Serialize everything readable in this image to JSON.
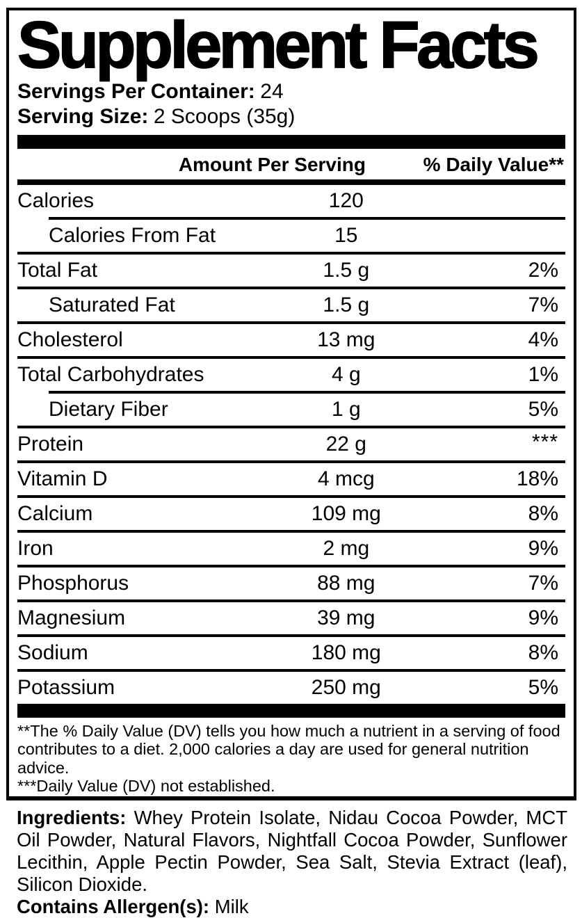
{
  "title": "Supplement Facts",
  "serving_info": {
    "servings_per_container_label": "Servings Per Container:",
    "servings_per_container_value": "24",
    "serving_size_label": "Serving Size:",
    "serving_size_value": "2 Scoops (35g)"
  },
  "table": {
    "header": {
      "amount": "Amount Per Serving",
      "daily_value": "% Daily Value**"
    },
    "rows": [
      {
        "name": "Calories",
        "amount": "120",
        "dv": ""
      },
      {
        "name": "Calories From Fat",
        "amount": "15",
        "dv": ""
      },
      {
        "name": "Total Fat",
        "amount": "1.5 g",
        "dv": "2%"
      },
      {
        "name": "Saturated Fat",
        "amount": "1.5 g",
        "dv": "7%"
      },
      {
        "name": "Cholesterol",
        "amount": "13 mg",
        "dv": "4%"
      },
      {
        "name": "Total Carbohydrates",
        "amount": "4 g",
        "dv": "1%"
      },
      {
        "name": "Dietary Fiber",
        "amount": "1 g",
        "dv": "5%"
      },
      {
        "name": "Protein",
        "amount": "22 g",
        "dv": "***"
      },
      {
        "name": "Vitamin D",
        "amount": "4 mcg",
        "dv": "18%"
      },
      {
        "name": "Calcium",
        "amount": "109 mg",
        "dv": "8%"
      },
      {
        "name": "Iron",
        "amount": "2 mg",
        "dv": "9%"
      },
      {
        "name": "Phosphorus",
        "amount": "88 mg",
        "dv": "7%"
      },
      {
        "name": "Magnesium",
        "amount": "39 mg",
        "dv": "9%"
      },
      {
        "name": "Sodium",
        "amount": "180 mg",
        "dv": "8%"
      },
      {
        "name": "Potassium",
        "amount": "250 mg",
        "dv": "5%"
      }
    ]
  },
  "footnotes": {
    "daily_value_note": "**The % Daily Value (DV) tells you how much a nutrient in a serving of food contributes to a diet. 2,000 calories a day are used for general nutrition advice.",
    "not_established_note": "***Daily Value (DV) not established."
  },
  "ingredients": {
    "label": "Ingredients:",
    "text": "Whey Protein Isolate, Nidau Cocoa Powder, MCT Oil Powder, Natural Flavors, Nightfall Cocoa Powder, Sunflower Lecithin, Apple Pectin Powder, Sea Salt, Stevia Extract (leaf), Silicon Dioxide.",
    "allergen_label": "Contains Allergen(s):",
    "allergen_value": "Milk"
  },
  "colors": {
    "text": "#000000",
    "background": "#ffffff"
  }
}
